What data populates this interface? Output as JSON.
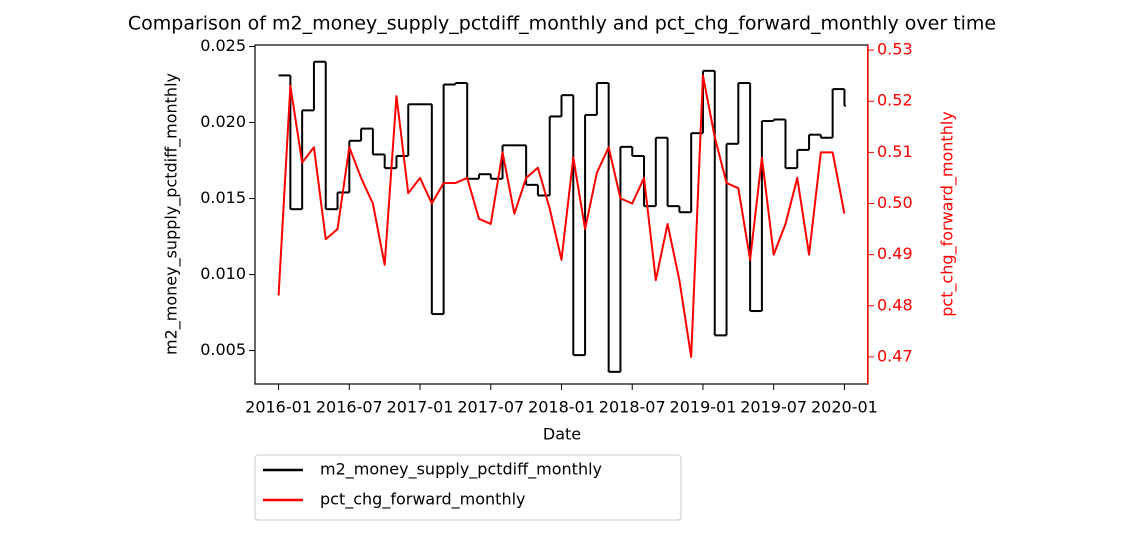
{
  "chart_data": {
    "type": "line",
    "title": "Comparison of m2_money_supply_pctdiff_monthly and pct_chg_forward_monthly over time",
    "xlabel": "Date",
    "ylabel": "m2_money_supply_pctdiff_monthly",
    "y2label": "pct_chg_forward_monthly",
    "x": [
      "2016-01",
      "2016-02",
      "2016-03",
      "2016-04",
      "2016-05",
      "2016-06",
      "2016-07",
      "2016-08",
      "2016-09",
      "2016-10",
      "2016-11",
      "2016-12",
      "2017-01",
      "2017-02",
      "2017-03",
      "2017-04",
      "2017-05",
      "2017-06",
      "2017-07",
      "2017-08",
      "2017-09",
      "2017-10",
      "2017-11",
      "2017-12",
      "2018-01",
      "2018-02",
      "2018-03",
      "2018-04",
      "2018-05",
      "2018-06",
      "2018-07",
      "2018-08",
      "2018-09",
      "2018-10",
      "2018-11",
      "2018-12",
      "2019-01",
      "2019-02",
      "2019-03",
      "2019-04",
      "2019-05",
      "2019-06",
      "2019-07",
      "2019-08",
      "2019-09",
      "2019-10",
      "2019-11",
      "2019-12",
      "2020-01"
    ],
    "series": [
      {
        "name": "m2_money_supply_pctdiff_monthly",
        "color": "#000000",
        "drawstyle": "steps-post",
        "values": [
          0.0231,
          0.0143,
          0.0208,
          0.024,
          0.0143,
          0.0154,
          0.0188,
          0.0196,
          0.0179,
          0.017,
          0.0178,
          0.0212,
          0.0212,
          0.0074,
          0.0225,
          0.0226,
          0.0163,
          0.0166,
          0.0163,
          0.0185,
          0.0185,
          0.0159,
          0.0152,
          0.0204,
          0.0218,
          0.0047,
          0.0205,
          0.0226,
          0.0036,
          0.0184,
          0.0178,
          0.0145,
          0.019,
          0.0145,
          0.0141,
          0.0193,
          0.0234,
          0.006,
          0.0186,
          0.0226,
          0.0076,
          0.0201,
          0.0202,
          0.017,
          0.0182,
          0.0192,
          0.019,
          0.0222,
          0.0211
        ]
      },
      {
        "name": "pct_chg_forward_monthly",
        "color": "#ff0000",
        "axis": "y2",
        "values": [
          0.482,
          0.523,
          0.508,
          0.511,
          0.493,
          0.495,
          0.511,
          0.505,
          0.5,
          0.488,
          0.521,
          0.502,
          0.505,
          0.5,
          0.504,
          0.504,
          0.505,
          0.497,
          0.496,
          0.51,
          0.498,
          0.505,
          0.507,
          0.499,
          0.489,
          0.509,
          0.495,
          0.506,
          0.511,
          0.501,
          0.5,
          0.505,
          0.485,
          0.496,
          0.485,
          0.47,
          0.525,
          0.513,
          0.504,
          0.503,
          0.489,
          0.509,
          0.49,
          0.496,
          0.505,
          0.49,
          0.51,
          0.51,
          0.498
        ]
      }
    ],
    "xlim": [
      "2015-11",
      "2020-03"
    ],
    "xticks": [
      "2016-01",
      "2016-07",
      "2017-01",
      "2017-07",
      "2018-01",
      "2018-07",
      "2019-01",
      "2019-07",
      "2020-01"
    ],
    "ylim": [
      0.0028,
      0.0251
    ],
    "yticks": [
      0.005,
      {
        "value": 0.01,
        "label": "0.010"
      },
      0.015,
      {
        "value": 0.02,
        "label": "0.020"
      },
      0.025
    ],
    "y2lim": [
      0.4647,
      0.531
    ],
    "y2ticks": [
      0.47,
      0.48,
      0.49,
      {
        "value": 0.5,
        "label": "0.50"
      },
      0.51,
      0.52,
      0.53
    ],
    "legend": "below-left"
  }
}
